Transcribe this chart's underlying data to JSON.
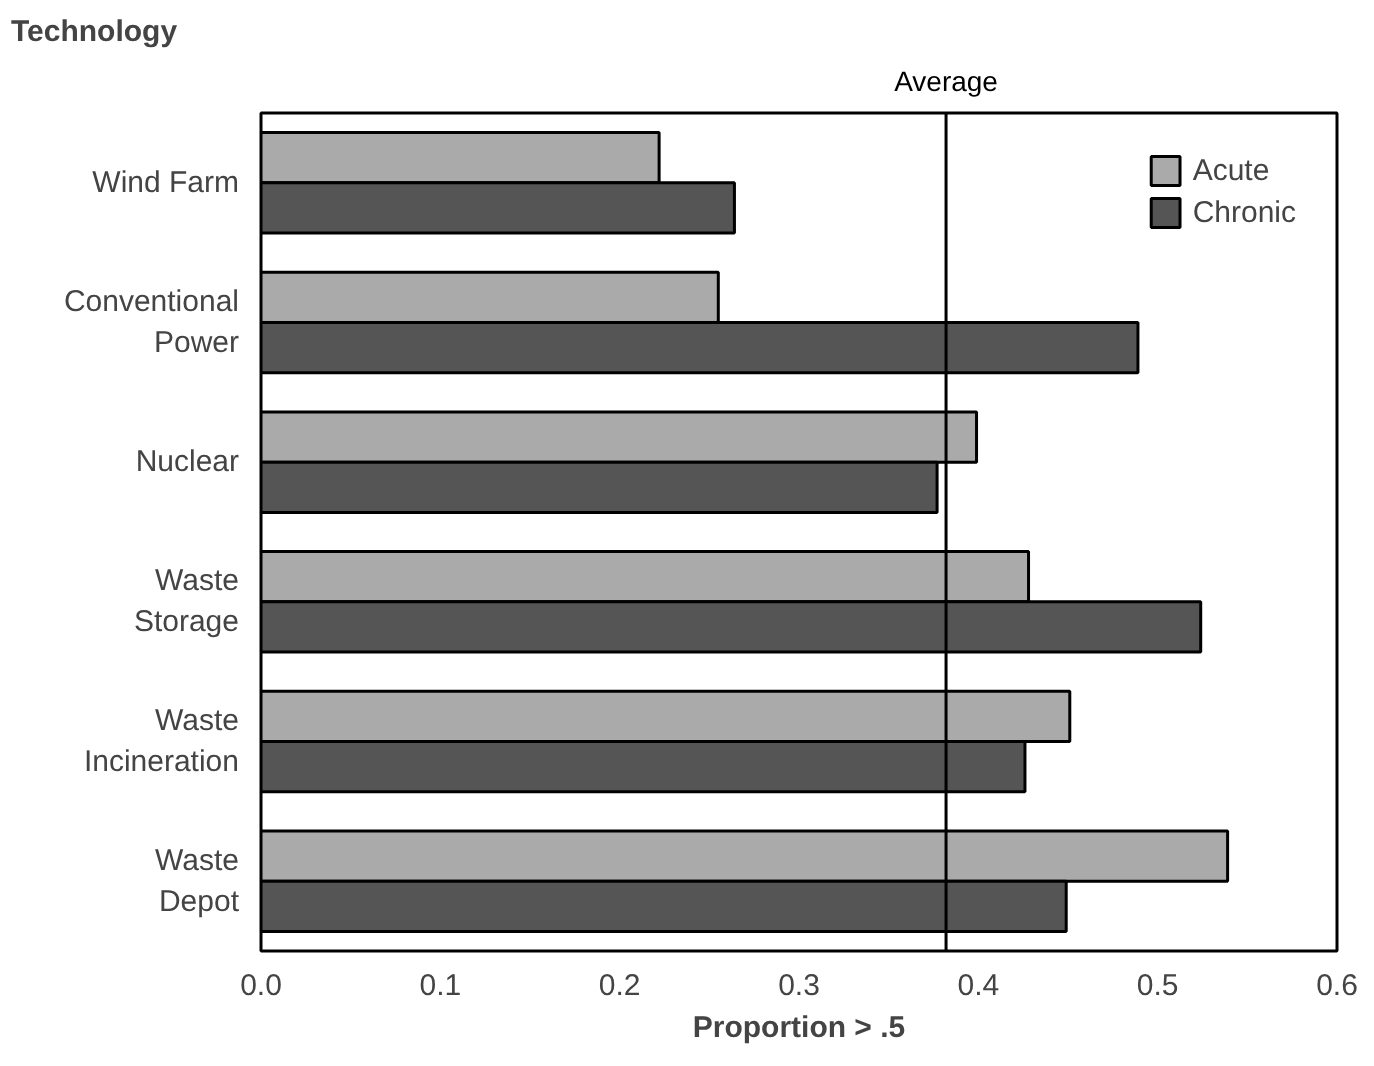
{
  "chart_data": {
    "type": "bar",
    "orientation": "horizontal",
    "ylabel": "Technology",
    "xlabel": "Proportion > .5",
    "categories": [
      "Wind Farm",
      "Conventional\nPower",
      "Nuclear",
      "Waste\nStorage",
      "Waste\nIncineration",
      "Waste\nDepot"
    ],
    "series": [
      {
        "name": "Acute",
        "color": "#aaaaaa",
        "values": [
          0.222,
          0.255,
          0.399,
          0.428,
          0.451,
          0.539
        ]
      },
      {
        "name": "Chronic",
        "color": "#555555",
        "values": [
          0.264,
          0.489,
          0.377,
          0.524,
          0.426,
          0.449
        ]
      }
    ],
    "xlim": [
      0.0,
      0.6
    ],
    "xticks": [
      {
        "value": 0,
        "label": "0.0"
      },
      0.1,
      0.2,
      0.3,
      0.4,
      0.5,
      {
        "value": 0.6,
        "label": "0.6"
      }
    ],
    "ref_lines": [
      {
        "axis": "x",
        "value": 0.382,
        "label": "Average",
        "color": "#000000"
      }
    ],
    "grid": false,
    "legend": "top right"
  }
}
